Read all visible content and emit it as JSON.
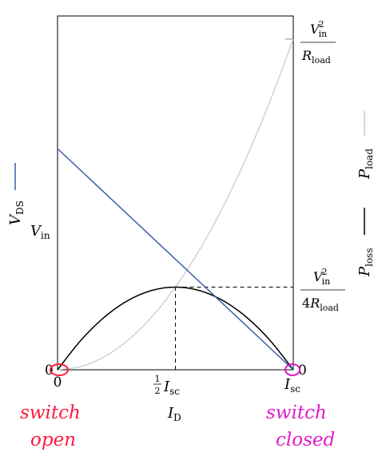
{
  "chart_data": {
    "type": "line",
    "x_axis": {
      "label_main": "I",
      "label_sub": "D",
      "ticks": [
        {
          "value": 0,
          "text": "0"
        },
        {
          "value": 0.5,
          "frac_num": "1",
          "frac_den": "2",
          "text": "I",
          "sub": "sc"
        },
        {
          "value": 1,
          "text": "I",
          "sub": "sc"
        }
      ],
      "range": [
        0,
        1
      ]
    },
    "y_axis_left": {
      "label_main": "V",
      "label_sub": "DS",
      "ticks": [
        {
          "value": 0,
          "text": "0"
        },
        {
          "value": 1,
          "text": "V",
          "sub": "in"
        }
      ],
      "range": [
        0,
        1.6
      ]
    },
    "y_axis_right": {
      "label_load_main": "P",
      "label_load_sub": "load",
      "label_loss_main": "P",
      "label_loss_sub": "loss",
      "ticks": [
        {
          "value": 0,
          "text": "0"
        },
        {
          "value": 0.25,
          "num_main": "V",
          "num_sub": "in",
          "num_sup": "2",
          "den_pre": "4",
          "den_main": "R",
          "den_sub": "load"
        },
        {
          "value": 1,
          "num_main": "V",
          "num_sub": "in",
          "num_sup": "2",
          "den_pre": "",
          "den_main": "R",
          "den_sub": "load"
        }
      ],
      "range": [
        0,
        1.07
      ]
    },
    "series": [
      {
        "key": "vds",
        "color": "#3a5ea8",
        "x": [
          0,
          1
        ],
        "y": [
          1,
          0
        ]
      },
      {
        "key": "ploss",
        "color": "#000000",
        "x": [
          0,
          0.1,
          0.2,
          0.3,
          0.4,
          0.5,
          0.6,
          0.7,
          0.8,
          0.9,
          1.0
        ],
        "y": [
          0,
          0.09,
          0.16,
          0.21,
          0.24,
          0.25,
          0.24,
          0.21,
          0.16,
          0.09,
          0
        ]
      },
      {
        "key": "pload",
        "color": "#c8c8c8",
        "x": [
          0,
          0.1,
          0.2,
          0.3,
          0.4,
          0.5,
          0.6,
          0.7,
          0.8,
          0.9,
          1.0
        ],
        "y": [
          0,
          0.01,
          0.04,
          0.09,
          0.16,
          0.25,
          0.36,
          0.49,
          0.64,
          0.81,
          1.0
        ]
      }
    ],
    "annotations": {
      "switch_open": [
        "switch",
        "open"
      ],
      "switch_closed": [
        "switch",
        "closed"
      ],
      "open_color": "#ff1a3c",
      "closed_color": "#e01ac8"
    }
  }
}
